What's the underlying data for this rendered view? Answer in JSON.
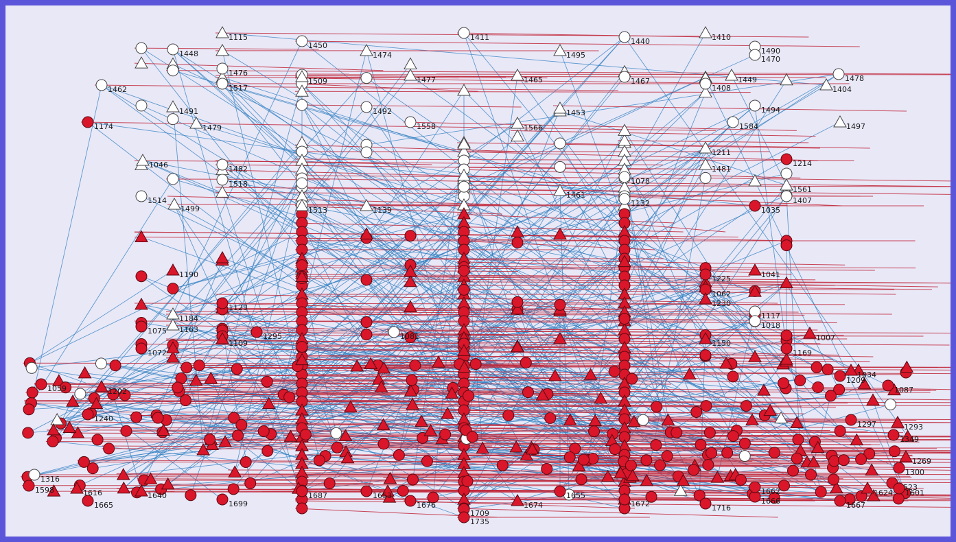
{
  "graph": {
    "colors": {
      "background": "#e9e8f7",
      "border": "#5b55d9",
      "red_node": "#d9162a",
      "white_node": "#ffffff",
      "blue_edge": "#2f7fc0",
      "red_edge": "#c0283a"
    },
    "node_kinds": [
      "circle",
      "triangle"
    ],
    "nodes": [
      {
        "id": "1115",
        "shape": "triangle",
        "color": "white"
      },
      {
        "id": "1411",
        "shape": "circle",
        "color": "white"
      },
      {
        "id": "1410",
        "shape": "triangle",
        "color": "white"
      },
      {
        "id": "1450",
        "shape": "circle",
        "color": "white"
      },
      {
        "id": "1474",
        "shape": "triangle",
        "color": "white"
      },
      {
        "id": "1440",
        "shape": "circle",
        "color": "white"
      },
      {
        "id": "1490",
        "shape": "circle",
        "color": "white"
      },
      {
        "id": "1470",
        "shape": "circle",
        "color": "white"
      },
      {
        "id": "1448",
        "shape": "circle",
        "color": "white"
      },
      {
        "id": "1495",
        "shape": "triangle",
        "color": "white"
      },
      {
        "id": "1476",
        "shape": "circle",
        "color": "white"
      },
      {
        "id": "1478",
        "shape": "circle",
        "color": "white"
      },
      {
        "id": "1462",
        "shape": "circle",
        "color": "white"
      },
      {
        "id": "1517",
        "shape": "circle",
        "color": "white"
      },
      {
        "id": "1509",
        "shape": "triangle",
        "color": "white"
      },
      {
        "id": "1477",
        "shape": "triangle",
        "color": "white"
      },
      {
        "id": "1465",
        "shape": "triangle",
        "color": "white"
      },
      {
        "id": "1467",
        "shape": "circle",
        "color": "white"
      },
      {
        "id": "1449",
        "shape": "triangle",
        "color": "white"
      },
      {
        "id": "1404",
        "shape": "triangle",
        "color": "white"
      },
      {
        "id": "1408",
        "shape": "circle",
        "color": "white"
      },
      {
        "id": "1491",
        "shape": "triangle",
        "color": "white"
      },
      {
        "id": "1492",
        "shape": "circle",
        "color": "white"
      },
      {
        "id": "1479",
        "shape": "triangle",
        "color": "white"
      },
      {
        "id": "1174",
        "shape": "circle",
        "color": "red"
      },
      {
        "id": "1558",
        "shape": "circle",
        "color": "white"
      },
      {
        "id": "1566",
        "shape": "triangle",
        "color": "white"
      },
      {
        "id": "1453",
        "shape": "triangle",
        "color": "white"
      },
      {
        "id": "1494",
        "shape": "circle",
        "color": "white"
      },
      {
        "id": "1584",
        "shape": "circle",
        "color": "white"
      },
      {
        "id": "1497",
        "shape": "triangle",
        "color": "white"
      },
      {
        "id": "1214",
        "shape": "circle",
        "color": "red"
      },
      {
        "id": "1211",
        "shape": "triangle",
        "color": "white"
      },
      {
        "id": "1481",
        "shape": "triangle",
        "color": "white"
      },
      {
        "id": "1046",
        "shape": "triangle",
        "color": "white"
      },
      {
        "id": "1482",
        "shape": "circle",
        "color": "white"
      },
      {
        "id": "1518",
        "shape": "circle",
        "color": "white"
      },
      {
        "id": "1078",
        "shape": "circle",
        "color": "white"
      },
      {
        "id": "1514",
        "shape": "circle",
        "color": "white"
      },
      {
        "id": "1499",
        "shape": "triangle",
        "color": "white"
      },
      {
        "id": "1513",
        "shape": "triangle",
        "color": "white"
      },
      {
        "id": "1139",
        "shape": "triangle",
        "color": "white"
      },
      {
        "id": "1461",
        "shape": "triangle",
        "color": "white"
      },
      {
        "id": "1132",
        "shape": "circle",
        "color": "white"
      },
      {
        "id": "1561",
        "shape": "triangle",
        "color": "white"
      },
      {
        "id": "1407",
        "shape": "circle",
        "color": "white"
      },
      {
        "id": "1035",
        "shape": "circle",
        "color": "red"
      },
      {
        "id": "1190",
        "shape": "triangle",
        "color": "red"
      },
      {
        "id": "1041",
        "shape": "triangle",
        "color": "red"
      },
      {
        "id": "1225",
        "shape": "circle",
        "color": "red"
      },
      {
        "id": "1062",
        "shape": "circle",
        "color": "red"
      },
      {
        "id": "1230",
        "shape": "triangle",
        "color": "red"
      },
      {
        "id": "1123",
        "shape": "circle",
        "color": "red"
      },
      {
        "id": "1184",
        "shape": "triangle",
        "color": "white"
      },
      {
        "id": "1163",
        "shape": "triangle",
        "color": "white"
      },
      {
        "id": "1117",
        "shape": "circle",
        "color": "white"
      },
      {
        "id": "1018",
        "shape": "circle",
        "color": "white"
      },
      {
        "id": "1081",
        "shape": "circle",
        "color": "white"
      },
      {
        "id": "1075",
        "shape": "circle",
        "color": "red"
      },
      {
        "id": "1109",
        "shape": "triangle",
        "color": "red"
      },
      {
        "id": "1295",
        "shape": "circle",
        "color": "red"
      },
      {
        "id": "1007",
        "shape": "triangle",
        "color": "red"
      },
      {
        "id": "1150",
        "shape": "triangle",
        "color": "red"
      },
      {
        "id": "1072",
        "shape": "circle",
        "color": "red"
      },
      {
        "id": "1169",
        "shape": "circle",
        "color": "red"
      },
      {
        "id": "1059",
        "shape": "circle",
        "color": "red"
      },
      {
        "id": "1202",
        "shape": "triangle",
        "color": "red"
      },
      {
        "id": "1209",
        "shape": "circle",
        "color": "red"
      },
      {
        "id": "1087",
        "shape": "circle",
        "color": "red"
      },
      {
        "id": "1034",
        "shape": "triangle",
        "color": "red"
      },
      {
        "id": "1240",
        "shape": "circle",
        "color": "red"
      },
      {
        "id": "1293",
        "shape": "triangle",
        "color": "red"
      },
      {
        "id": "1297",
        "shape": "circle",
        "color": "red"
      },
      {
        "id": "1349",
        "shape": "circle",
        "color": "red"
      },
      {
        "id": "1269",
        "shape": "triangle",
        "color": "red"
      },
      {
        "id": "1300",
        "shape": "circle",
        "color": "red"
      },
      {
        "id": "1316",
        "shape": "circle",
        "color": "white"
      },
      {
        "id": "1523",
        "shape": "circle",
        "color": "red"
      },
      {
        "id": "1601",
        "shape": "circle",
        "color": "red"
      },
      {
        "id": "1598",
        "shape": "circle",
        "color": "red"
      },
      {
        "id": "1616",
        "shape": "triangle",
        "color": "red"
      },
      {
        "id": "1665",
        "shape": "circle",
        "color": "red"
      },
      {
        "id": "1640",
        "shape": "triangle",
        "color": "red"
      },
      {
        "id": "1699",
        "shape": "circle",
        "color": "red"
      },
      {
        "id": "1687",
        "shape": "circle",
        "color": "red"
      },
      {
        "id": "1653",
        "shape": "circle",
        "color": "red"
      },
      {
        "id": "1676",
        "shape": "circle",
        "color": "red"
      },
      {
        "id": "1709",
        "shape": "circle",
        "color": "red"
      },
      {
        "id": "1735",
        "shape": "circle",
        "color": "red"
      },
      {
        "id": "1674",
        "shape": "triangle",
        "color": "red"
      },
      {
        "id": "1655",
        "shape": "circle",
        "color": "red"
      },
      {
        "id": "1672",
        "shape": "circle",
        "color": "red"
      },
      {
        "id": "1716",
        "shape": "circle",
        "color": "red"
      },
      {
        "id": "1666",
        "shape": "circle",
        "color": "red"
      },
      {
        "id": "1662",
        "shape": "circle",
        "color": "red"
      },
      {
        "id": "1667",
        "shape": "circle",
        "color": "red"
      },
      {
        "id": "1624",
        "shape": "triangle",
        "color": "red"
      }
    ]
  }
}
